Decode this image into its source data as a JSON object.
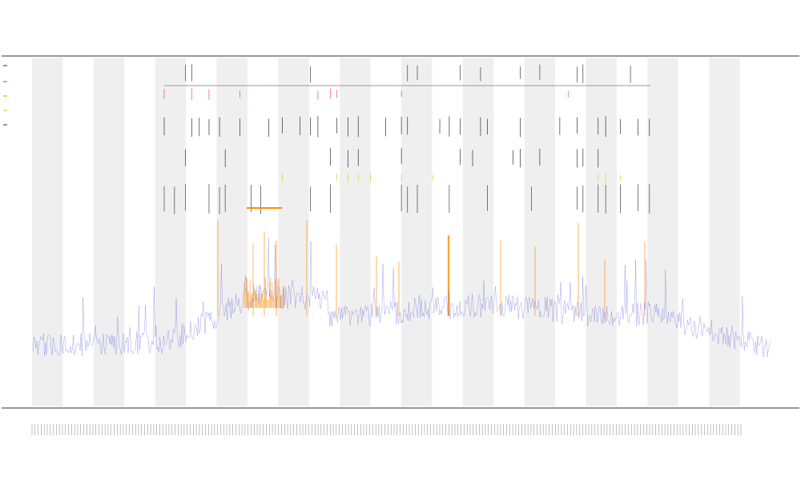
{
  "chart_data": {
    "type": "line",
    "title": "",
    "subtitle_lines": [
      "",
      ""
    ],
    "xlabel": "",
    "ylabel": "",
    "ylim": [
      0,
      1
    ],
    "grid": false,
    "legend": "",
    "series": [
      {
        "name": "",
        "color": "#5a5adc",
        "role": "signal"
      },
      {
        "name": "",
        "color": "#ff8c00",
        "role": "highlight"
      },
      {
        "name": "",
        "color": "#e6e600",
        "role": "marker"
      }
    ],
    "x_tick_count": 234,
    "band_count": 23,
    "annotations": []
  }
}
